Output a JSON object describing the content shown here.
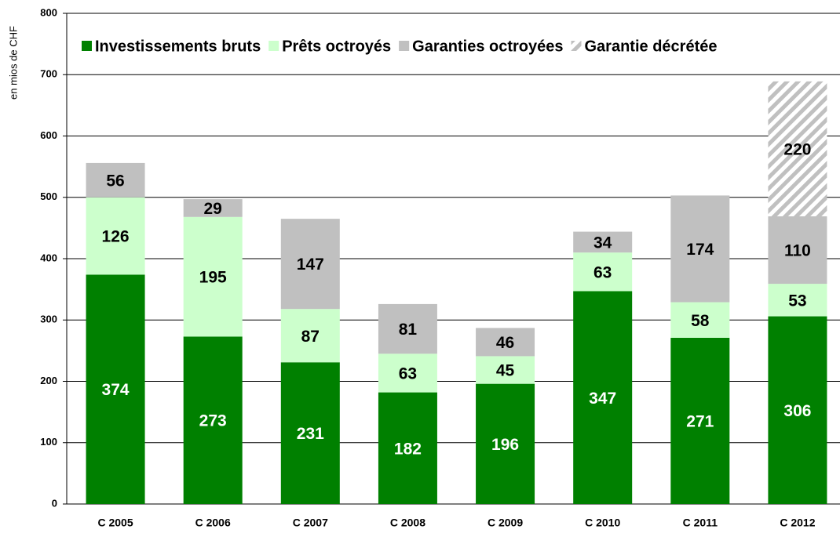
{
  "chart_data": {
    "type": "stacked_bar",
    "y_label": "en mios de CHF",
    "categories": [
      "C 2005",
      "C 2006",
      "C 2007",
      "C 2008",
      "C 2009",
      "C 2010",
      "C 2011",
      "C 2012"
    ],
    "series": [
      {
        "name": "Investissements bruts",
        "color": "#008000",
        "label_color": "#ffffff",
        "values": [
          374,
          273,
          231,
          182,
          196,
          347,
          271,
          306
        ]
      },
      {
        "name": "Prêts octroyés",
        "color": "#ccffcc",
        "label_color": "#000000",
        "values": [
          126,
          195,
          87,
          63,
          45,
          63,
          58,
          53
        ]
      },
      {
        "name": "Garanties octroyées",
        "color": "#c0c0c0",
        "label_color": "#000000",
        "values": [
          56,
          29,
          147,
          81,
          46,
          34,
          174,
          110
        ]
      },
      {
        "name": "Garantie décrétée",
        "color": "#c0c0c0",
        "hatched": true,
        "label_color": "#000000",
        "values": [
          null,
          null,
          null,
          null,
          null,
          null,
          null,
          220
        ]
      }
    ],
    "ylim": [
      0,
      800
    ],
    "yticks": [
      0,
      100,
      200,
      300,
      400,
      500,
      600,
      700,
      800
    ],
    "grid": true
  }
}
